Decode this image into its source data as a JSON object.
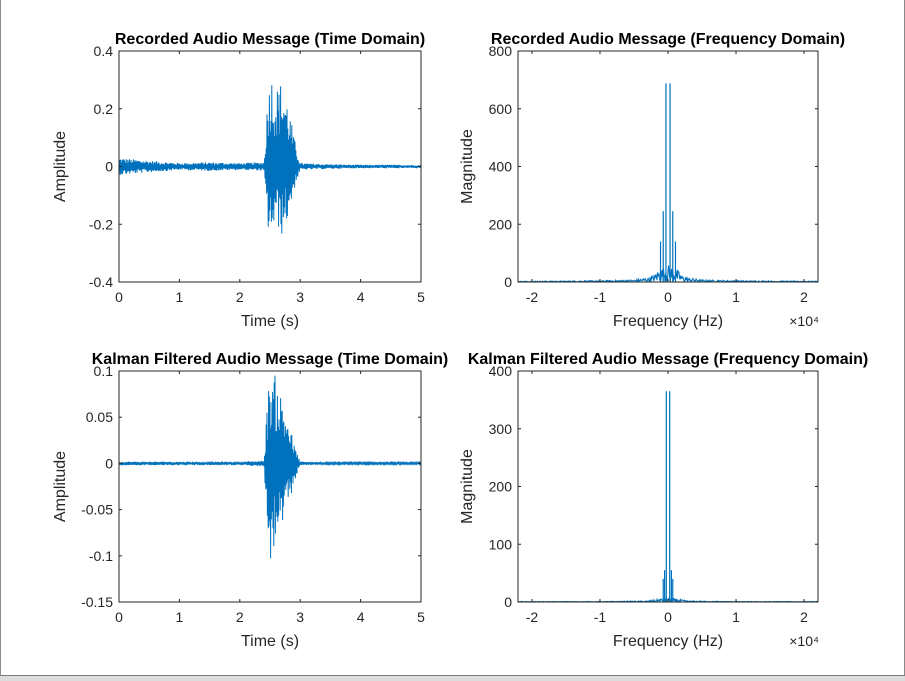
{
  "figure": {
    "line_color": "#0072bd",
    "axes_color": "#262626",
    "background": "#ffffff"
  },
  "chart_data": [
    {
      "type": "line",
      "title": "Recorded Audio Message (Time Domain)",
      "xlabel": "Time (s)",
      "ylabel": "Amplitude",
      "xlim": [
        0,
        5
      ],
      "ylim": [
        -0.4,
        0.4
      ],
      "xticks": [
        0,
        1,
        2,
        3,
        4,
        5
      ],
      "xtick_labels": [
        "0",
        "1",
        "2",
        "3",
        "4",
        "5"
      ],
      "yticks": [
        -0.4,
        -0.2,
        0,
        0.2,
        0.4
      ],
      "ytick_labels": [
        "-0.4",
        "-0.2",
        "0",
        "0.2",
        "0.4"
      ],
      "exponent_label": "",
      "envelope": {
        "x": [
          0,
          0.5,
          1.0,
          1.5,
          2.0,
          2.4,
          2.45,
          2.5,
          2.6,
          2.7,
          2.8,
          2.9,
          3.0,
          3.5,
          4.0,
          4.5,
          5.0
        ],
        "upper": [
          0.03,
          0.02,
          0.012,
          0.015,
          0.012,
          0.015,
          0.2,
          0.34,
          0.27,
          0.3,
          0.22,
          0.1,
          0.012,
          0.008,
          0.006,
          0.006,
          0.005
        ],
        "lower": [
          -0.03,
          -0.02,
          -0.012,
          -0.015,
          -0.012,
          -0.015,
          -0.2,
          -0.25,
          -0.2,
          -0.24,
          -0.18,
          -0.08,
          -0.012,
          -0.008,
          -0.006,
          -0.006,
          -0.005
        ]
      }
    },
    {
      "type": "line",
      "title": "Recorded Audio Message (Frequency Domain)",
      "xlabel": "Frequency (Hz)",
      "ylabel": "Magnitude",
      "xlim": [
        -22050,
        22050
      ],
      "ylim": [
        0,
        800
      ],
      "xticks": [
        -20000,
        -10000,
        0,
        10000,
        20000
      ],
      "xtick_labels": [
        "-2",
        "-1",
        "0",
        "1",
        "2"
      ],
      "yticks": [
        0,
        200,
        400,
        600,
        800
      ],
      "ytick_labels": [
        "0",
        "200",
        "400",
        "600",
        "800"
      ],
      "exponent_label": "×10⁴",
      "peaks": [
        {
          "x": -300,
          "y": 688
        },
        {
          "x": 300,
          "y": 688
        },
        {
          "x": -700,
          "y": 245
        },
        {
          "x": 700,
          "y": 245
        },
        {
          "x": -1100,
          "y": 140
        },
        {
          "x": 1100,
          "y": 140
        }
      ],
      "envelope": {
        "x": [
          -22050,
          -15000,
          -10000,
          -5000,
          -3000,
          -2000,
          -1500,
          0,
          1500,
          2000,
          3000,
          5000,
          10000,
          15000,
          22050
        ],
        "upper": [
          3,
          4,
          5,
          8,
          15,
          25,
          40,
          60,
          40,
          25,
          15,
          8,
          5,
          4,
          3
        ]
      }
    },
    {
      "type": "line",
      "title": "Kalman Filtered Audio Message (Time Domain)",
      "xlabel": "Time (s)",
      "ylabel": "Amplitude",
      "xlim": [
        0,
        5
      ],
      "ylim": [
        -0.15,
        0.1
      ],
      "xticks": [
        0,
        1,
        2,
        3,
        4,
        5
      ],
      "xtick_labels": [
        "0",
        "1",
        "2",
        "3",
        "4",
        "5"
      ],
      "yticks": [
        -0.15,
        -0.1,
        -0.05,
        0,
        0.05,
        0.1
      ],
      "ytick_labels": [
        "-0.15",
        "-0.1",
        "-0.05",
        "0",
        "0.05",
        "0.1"
      ],
      "exponent_label": "",
      "envelope": {
        "x": [
          0,
          0.5,
          1.0,
          1.5,
          2.0,
          2.4,
          2.45,
          2.5,
          2.6,
          2.7,
          2.8,
          2.9,
          3.0,
          3.5,
          4.0,
          4.5,
          5.0
        ],
        "upper": [
          0.002,
          0.002,
          0.002,
          0.002,
          0.002,
          0.003,
          0.06,
          0.1,
          0.095,
          0.07,
          0.05,
          0.02,
          0.002,
          0.001,
          0.001,
          0.001,
          0.001
        ],
        "lower": [
          -0.002,
          -0.002,
          -0.002,
          -0.002,
          -0.002,
          -0.003,
          -0.07,
          -0.108,
          -0.09,
          -0.07,
          -0.05,
          -0.02,
          -0.002,
          -0.001,
          -0.001,
          -0.001,
          -0.001
        ]
      }
    },
    {
      "type": "line",
      "title": "Kalman Filtered Audio Message (Frequency Domain)",
      "xlabel": "Frequency (Hz)",
      "ylabel": "Magnitude",
      "xlim": [
        -22050,
        22050
      ],
      "ylim": [
        0,
        400
      ],
      "xticks": [
        -20000,
        -10000,
        0,
        10000,
        20000
      ],
      "xtick_labels": [
        "-2",
        "-1",
        "0",
        "1",
        "2"
      ],
      "yticks": [
        0,
        100,
        200,
        300,
        400
      ],
      "ytick_labels": [
        "0",
        "100",
        "200",
        "300",
        "400"
      ],
      "exponent_label": "×10⁴",
      "peaks": [
        {
          "x": -250,
          "y": 365
        },
        {
          "x": 250,
          "y": 365
        },
        {
          "x": -500,
          "y": 55
        },
        {
          "x": 500,
          "y": 55
        },
        {
          "x": -700,
          "y": 40
        },
        {
          "x": 700,
          "y": 40
        }
      ],
      "envelope": {
        "x": [
          -22050,
          -10000,
          -3000,
          -1500,
          0,
          1500,
          3000,
          10000,
          22050
        ],
        "upper": [
          1,
          1,
          2,
          5,
          8,
          5,
          2,
          1,
          1
        ]
      }
    }
  ]
}
